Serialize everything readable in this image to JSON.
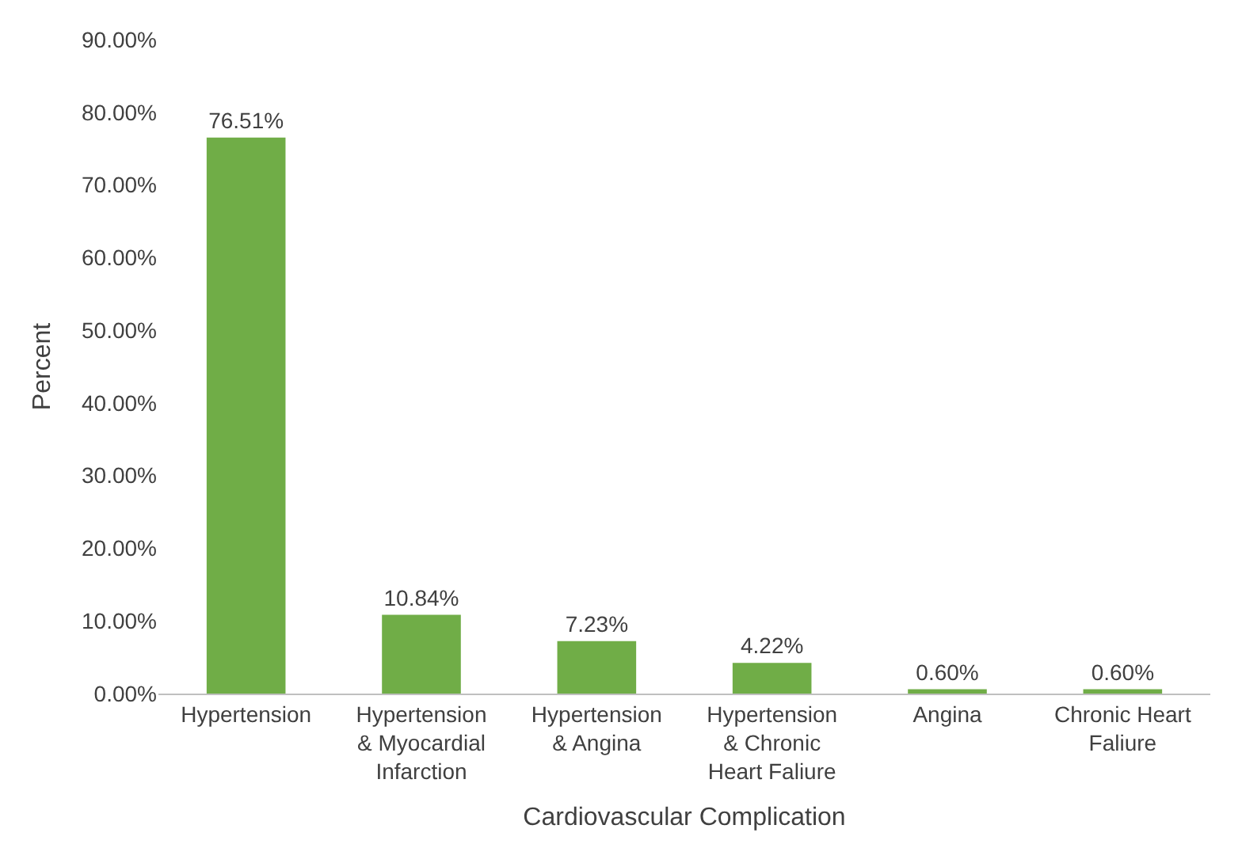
{
  "chart_data": {
    "type": "bar",
    "categories": [
      "Hypertension",
      "Hypertension & Myocardial Infarction",
      "Hypertension & Angina",
      "Hypertension & Chronic Heart Faliure",
      "Angina",
      "Chronic Heart Faliure"
    ],
    "values": [
      76.51,
      10.84,
      7.23,
      4.22,
      0.6,
      0.6
    ],
    "value_labels": [
      "76.51%",
      "10.84%",
      "7.23%",
      "4.22%",
      "0.60%",
      "0.60%"
    ],
    "color": "#70ad47",
    "xlabel": "Cardiovascular Complication",
    "ylabel": "Percent",
    "ylim": [
      0,
      90
    ],
    "yticks": [
      {
        "value": 0,
        "label": "0.00%"
      },
      {
        "value": 10,
        "label": "10.00%"
      },
      {
        "value": 20,
        "label": "20.00%"
      },
      {
        "value": 30,
        "label": "30.00%"
      },
      {
        "value": 40,
        "label": "40.00%"
      },
      {
        "value": 50,
        "label": "50.00%"
      },
      {
        "value": 60,
        "label": "60.00%"
      },
      {
        "value": 70,
        "label": "70.00%"
      },
      {
        "value": 80,
        "label": "80.00%"
      },
      {
        "value": 90,
        "label": "90.00%"
      }
    ],
    "grid": false
  }
}
